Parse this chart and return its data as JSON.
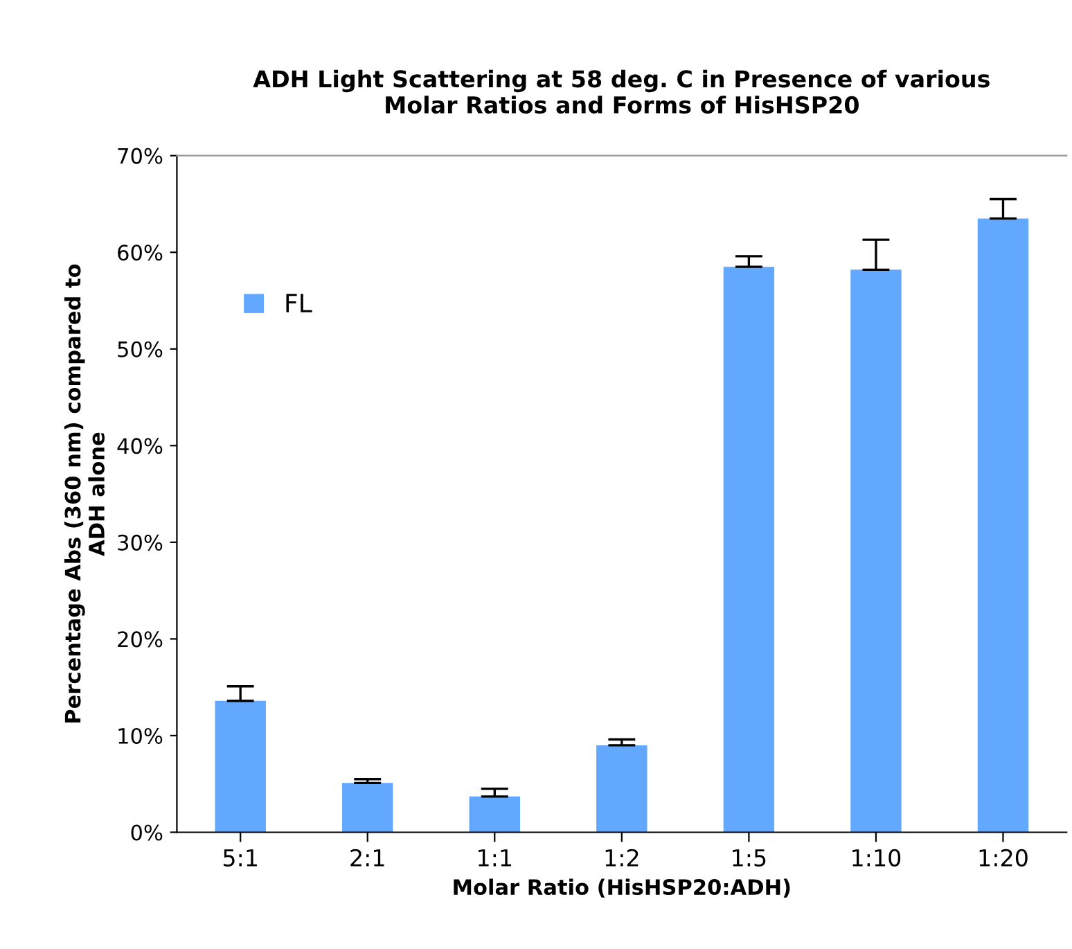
{
  "chart_data": {
    "type": "bar",
    "title": "ADH Light Scattering at 58 deg. C in Presence of various\nMolar Ratios and Forms of HisHSP20",
    "xlabel": "Molar Ratio (HisHSP20:ADH)",
    "ylabel": "Percentage Abs (360 nm) compared to\nADH alone",
    "categories": [
      "5:1",
      "2:1",
      "1:1",
      "1:2",
      "1:5",
      "1:10",
      "1:20"
    ],
    "series": [
      {
        "name": "FL",
        "color": "#62a8ff",
        "values": [
          13.6,
          5.1,
          3.7,
          9.0,
          58.5,
          58.2,
          63.5
        ],
        "errors": [
          [
            13.6,
            15.1
          ],
          [
            5.1,
            5.5
          ],
          [
            3.7,
            4.5
          ],
          [
            9.0,
            9.6
          ],
          [
            58.5,
            59.6
          ],
          [
            58.2,
            61.3
          ],
          [
            63.5,
            65.5
          ]
        ]
      }
    ],
    "ylim": [
      0,
      70
    ],
    "yticks": [
      {
        "value": 0,
        "label": "0%"
      },
      {
        "value": 10,
        "label": "10%"
      },
      {
        "value": 20,
        "label": "20%"
      },
      {
        "value": 30,
        "label": "30%"
      },
      {
        "value": 40,
        "label": "40%"
      },
      {
        "value": 50,
        "label": "50%"
      },
      {
        "value": 60,
        "label": "60%"
      },
      {
        "value": 70,
        "label": "70%"
      }
    ],
    "grid": false,
    "legend": "top left"
  }
}
